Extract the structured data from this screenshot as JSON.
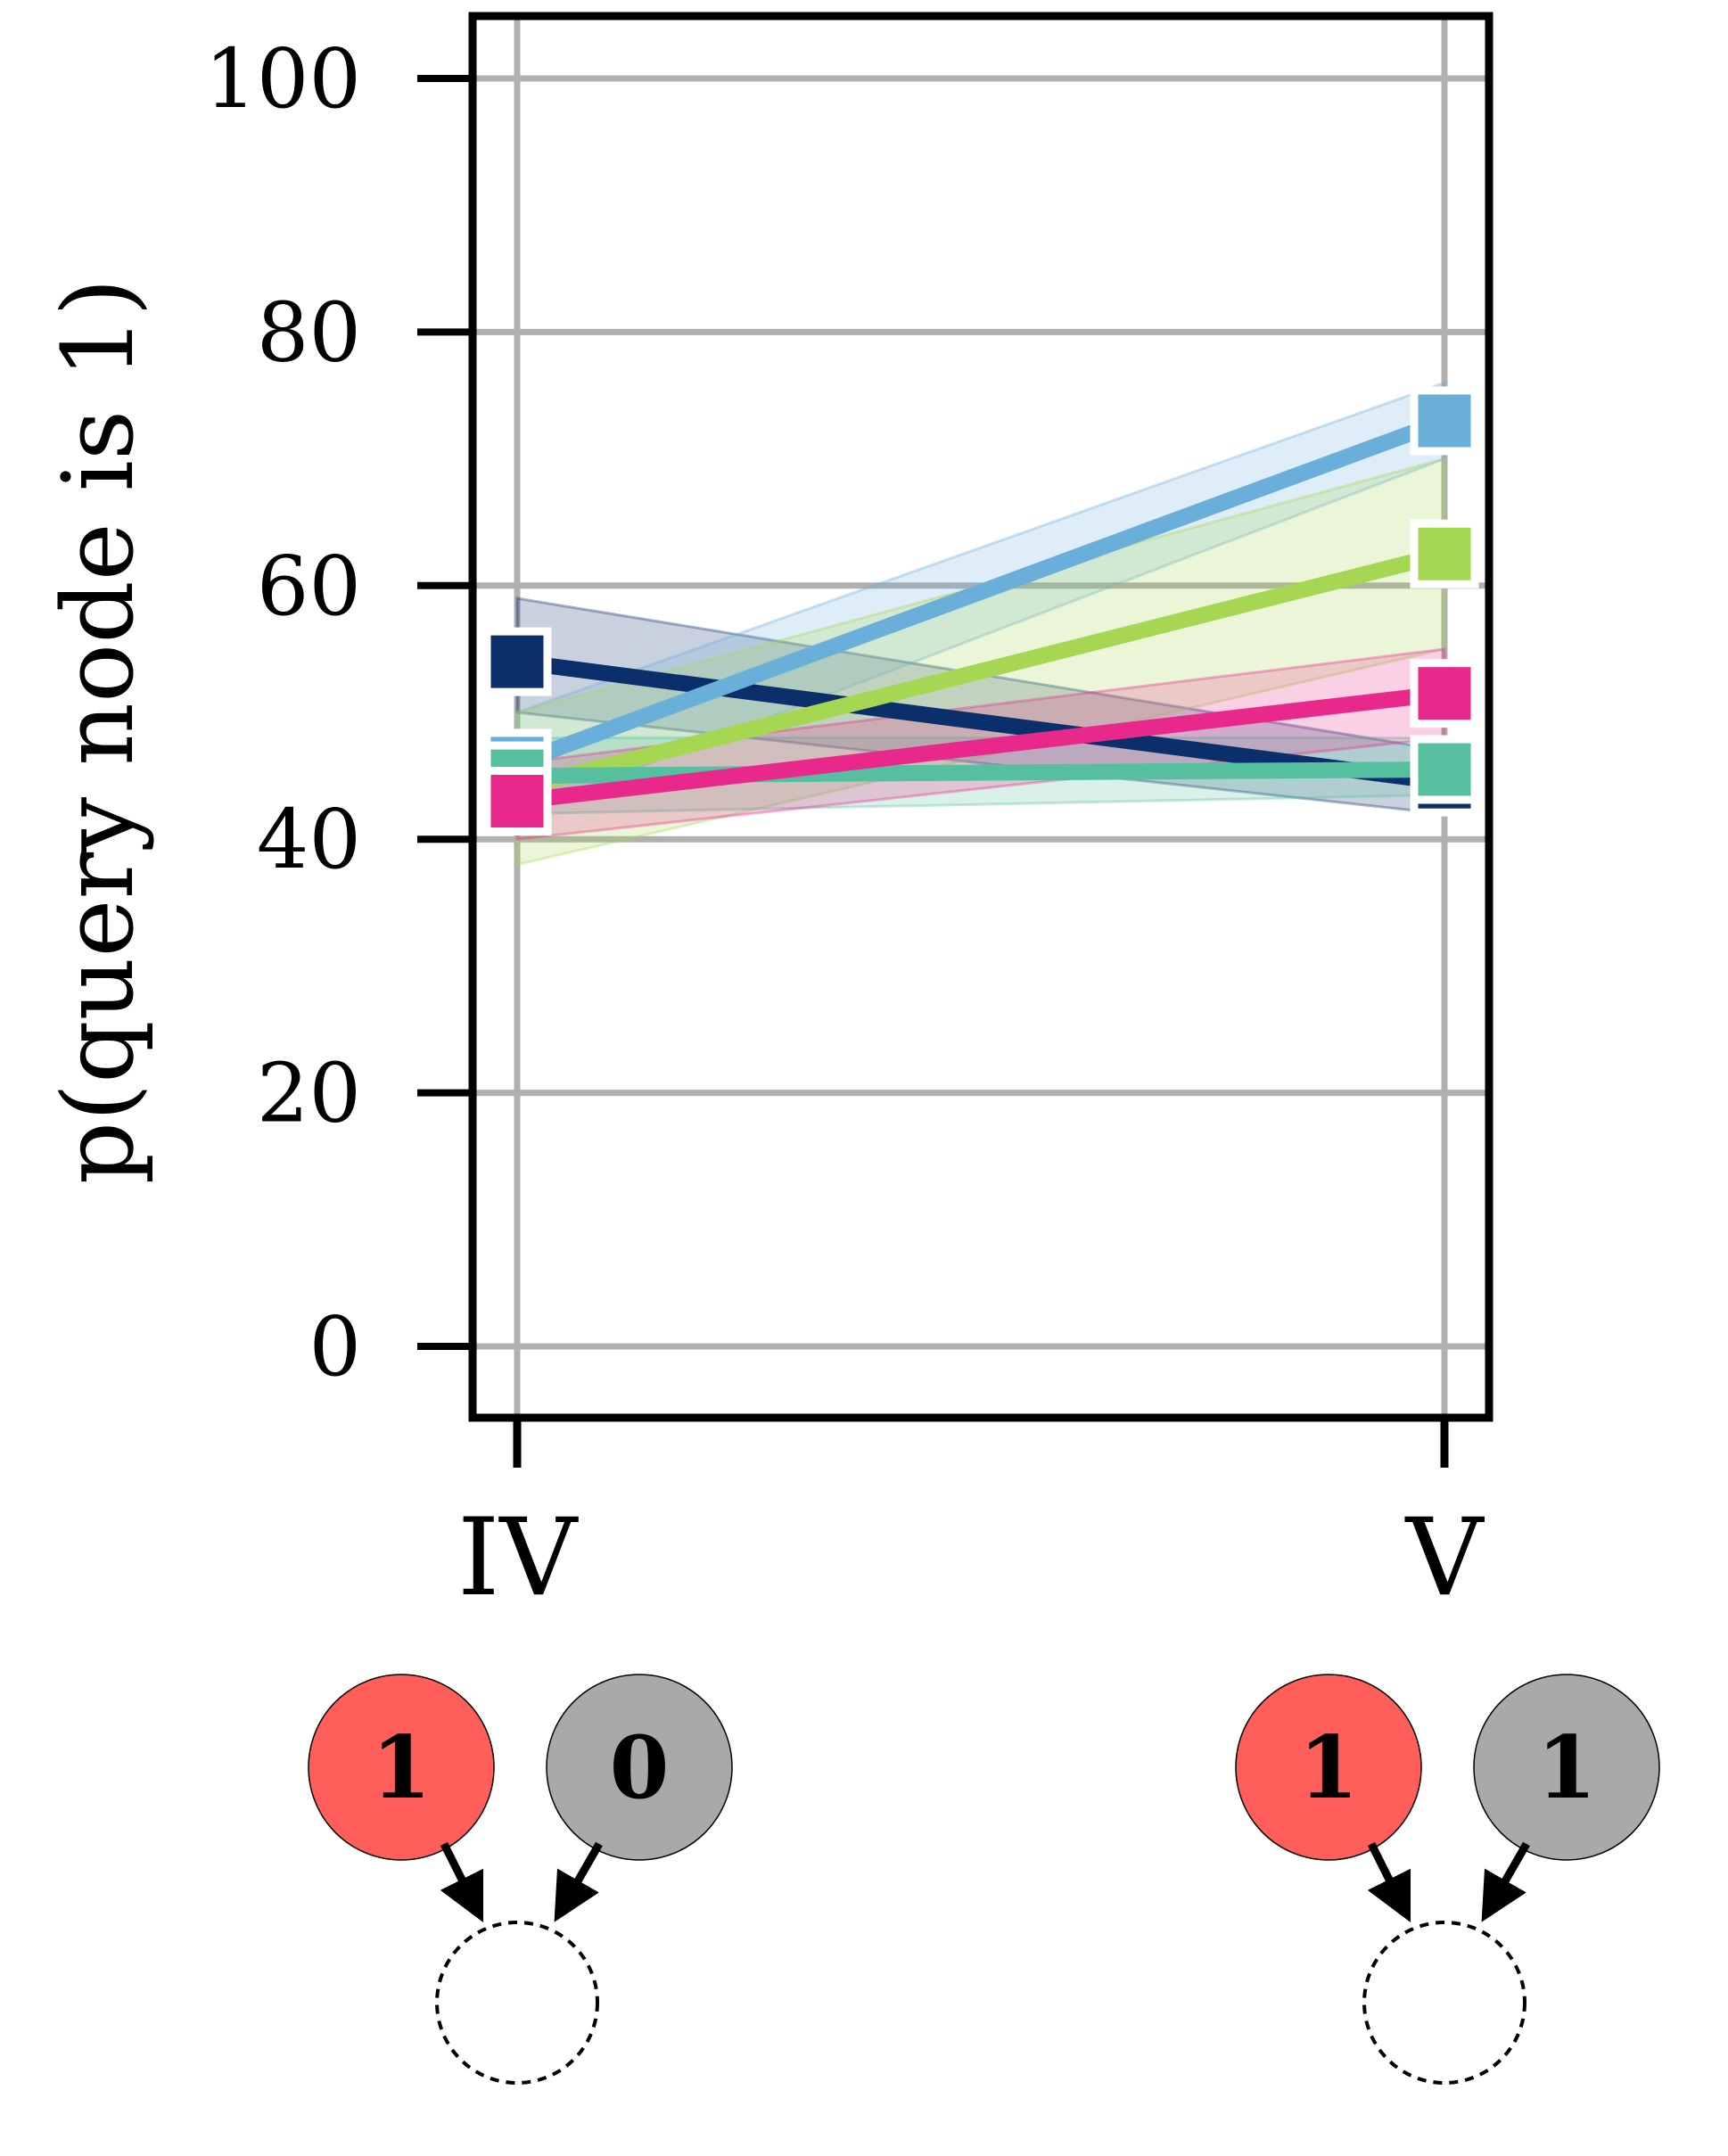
{
  "chart_data": {
    "type": "line",
    "title": "",
    "xlabel": "",
    "ylabel": "p(query node is 1)",
    "categories": [
      "IV",
      "V"
    ],
    "ylim": [
      -5,
      105
    ],
    "yticks": [
      0,
      20,
      40,
      60,
      80,
      100
    ],
    "grid": true,
    "legend": "none",
    "series": [
      {
        "color": "#0a2f6b",
        "values": [
          54,
          44.5
        ],
        "ci_low": [
          50,
          42
        ],
        "ci_high": [
          59,
          47
        ]
      },
      {
        "color": "#6aafd9",
        "values": [
          46,
          73
        ],
        "ci_low": [
          42,
          70
        ],
        "ci_high": [
          50,
          76
        ]
      },
      {
        "color": "#a5d753",
        "values": [
          44,
          62.5
        ],
        "ci_low": [
          38,
          55
        ],
        "ci_high": [
          50,
          70
        ]
      },
      {
        "color": "#55bfa0",
        "values": [
          45,
          45.5
        ],
        "ci_low": [
          42,
          43.5
        ],
        "ci_high": [
          48,
          48
        ]
      },
      {
        "color": "#e8288a",
        "values": [
          43,
          51.5
        ],
        "ci_low": [
          40,
          48
        ],
        "ci_high": [
          46,
          55
        ]
      }
    ],
    "diagrams": [
      {
        "category": "IV",
        "parent_a": "1",
        "parent_b": "0",
        "parent_a_color": "#ff5e5b",
        "parent_b_color": "#a9a9a9"
      },
      {
        "category": "V",
        "parent_a": "1",
        "parent_b": "1",
        "parent_a_color": "#ff5e5b",
        "parent_b_color": "#a9a9a9"
      }
    ]
  }
}
